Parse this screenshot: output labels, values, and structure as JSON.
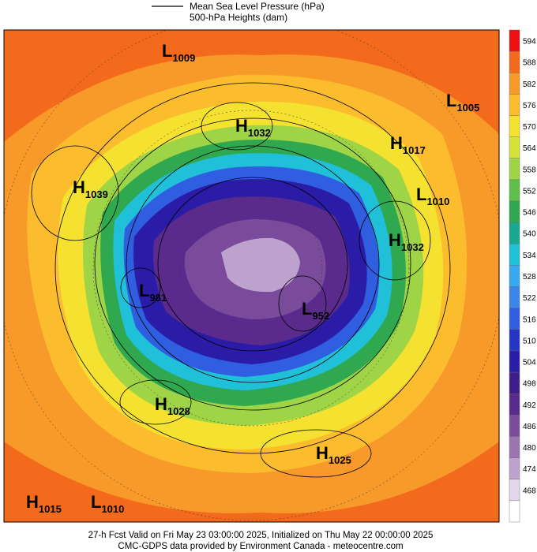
{
  "header": {
    "legend_line_label": "Mean Sea Level Pressure (hPa)",
    "legend_fill_label": "500-hPa Heights (dam)"
  },
  "colorbar": {
    "levels": [
      594,
      588,
      582,
      576,
      570,
      564,
      558,
      552,
      546,
      540,
      534,
      528,
      522,
      516,
      510,
      504,
      498,
      492,
      486,
      480,
      474,
      468
    ],
    "colors": [
      "#ee1010",
      "#f36a1c",
      "#f89a2a",
      "#fbbd2e",
      "#f5e230",
      "#d4e336",
      "#9fd446",
      "#5ebf4b",
      "#2fa84f",
      "#17a98f",
      "#20c1d8",
      "#38a9f0",
      "#3b86e8",
      "#305ee0",
      "#2536c6",
      "#2a1ca6",
      "#3e1c8a",
      "#5a2b8c",
      "#7b4b9b",
      "#9b74b1",
      "#bda2cd",
      "#e3d6eb"
    ]
  },
  "centers": [
    {
      "kind": "L",
      "value": "1009"
    },
    {
      "kind": "H",
      "value": "1032"
    },
    {
      "kind": "H",
      "value": "1017"
    },
    {
      "kind": "L",
      "value": "1005"
    },
    {
      "kind": "H",
      "value": "1039"
    },
    {
      "kind": "L",
      "value": "1010"
    },
    {
      "kind": "H",
      "value": "1032"
    },
    {
      "kind": "L",
      "value": "981"
    },
    {
      "kind": "L",
      "value": "952"
    },
    {
      "kind": "H",
      "value": "1028"
    },
    {
      "kind": "H",
      "value": "1025"
    },
    {
      "kind": "H",
      "value": "1015"
    },
    {
      "kind": "L",
      "value": "1010"
    }
  ],
  "footer": {
    "line1": "27-h Fcst Valid on Fri May 23 03:00:00 2025, Initialized on Thu May 22 00:00:00 2025",
    "line2": "CMC-GDPS data provided by Environment Canada - meteocentre.com"
  }
}
